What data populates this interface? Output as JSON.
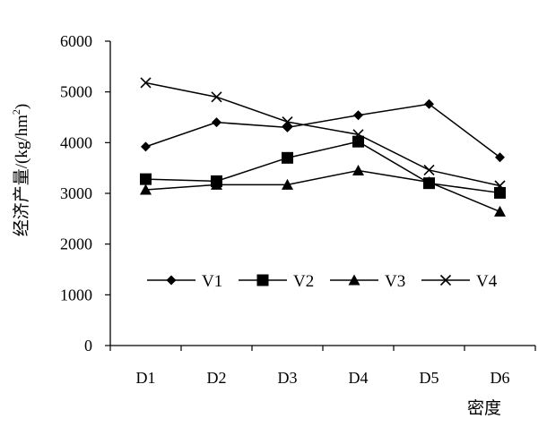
{
  "chart_data": {
    "type": "line",
    "title": "",
    "xlabel": "密度",
    "ylabel": "经济产量/(kg/hm²)",
    "ylabel_parts": {
      "main": "经济产量/(kg/hm",
      "sup": "2",
      "close": ")"
    },
    "categories": [
      "D1",
      "D2",
      "D3",
      "D4",
      "D5",
      "D6"
    ],
    "ylim": [
      0,
      6000
    ],
    "yticks": [
      0,
      1000,
      2000,
      3000,
      4000,
      5000,
      6000
    ],
    "ytick_labels": [
      "0",
      "1000",
      "2000",
      "3000",
      "4000",
      "5000",
      "6000"
    ],
    "grid": false,
    "legend_position": "inside-center",
    "series": [
      {
        "name": "V1",
        "marker": "diamond",
        "values": [
          3920,
          4400,
          4300,
          4540,
          4760,
          3710
        ]
      },
      {
        "name": "V2",
        "marker": "square",
        "values": [
          3280,
          3240,
          3700,
          4020,
          3200,
          3010
        ]
      },
      {
        "name": "V3",
        "marker": "triangle",
        "values": [
          3070,
          3170,
          3170,
          3450,
          3220,
          2640
        ]
      },
      {
        "name": "V4",
        "marker": "x",
        "values": [
          5180,
          4900,
          4410,
          4160,
          3460,
          3150
        ]
      }
    ],
    "colors": {
      "line": "#000000"
    }
  }
}
